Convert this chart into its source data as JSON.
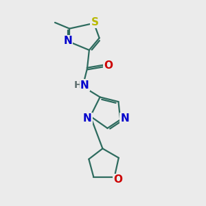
{
  "background_color": "#ebebeb",
  "bond_color": "#2d6b5e",
  "bond_width": 1.6,
  "atom_colors": {
    "S": "#b8b800",
    "N": "#0000cc",
    "O": "#cc0000",
    "H": "#607070",
    "C": "#2d6b5e"
  },
  "figsize": [
    3.0,
    3.0
  ],
  "dpi": 100
}
